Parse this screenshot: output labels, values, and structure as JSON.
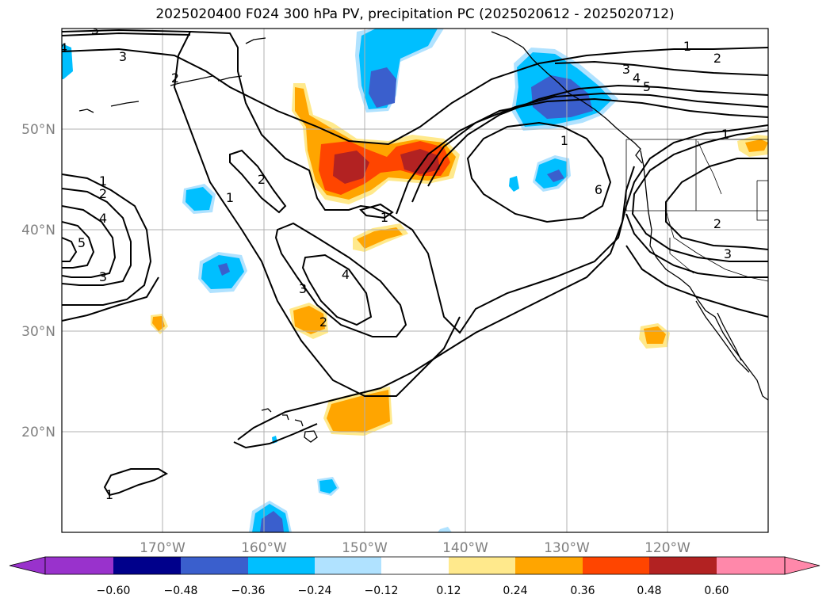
{
  "title": "2025020400 F024 300 hPa PV, precipitation PC (2025020612 - 2025020712)",
  "map": {
    "extent": {
      "lon_min": -180,
      "lon_max": -110,
      "lat_min": 10,
      "lat_max": 60
    },
    "lat_labels": [
      "20°N",
      "30°N",
      "40°N",
      "50°N"
    ],
    "lon_labels": [
      "170°W",
      "160°W",
      "150°W",
      "140°W",
      "130°W",
      "120°W"
    ],
    "pv_contour_labels": [
      "1",
      "2",
      "3",
      "4",
      "5",
      "6"
    ]
  },
  "colorbar": {
    "ticks": [
      "−0.60",
      "−0.48",
      "−0.36",
      "−0.24",
      "−0.12",
      "0.12",
      "0.24",
      "0.36",
      "0.48",
      "0.60"
    ],
    "colors": [
      "#9932cc",
      "#00008b",
      "#3a5fcd",
      "#00bfff",
      "#b0e2ff",
      "#ffffff",
      "#ffe98c",
      "#ffa500",
      "#ff4500",
      "#b22222",
      "#ff88aa"
    ]
  },
  "colors": {
    "grid": "#b0b0b0",
    "contour": "#000000",
    "coast": "#000000"
  }
}
